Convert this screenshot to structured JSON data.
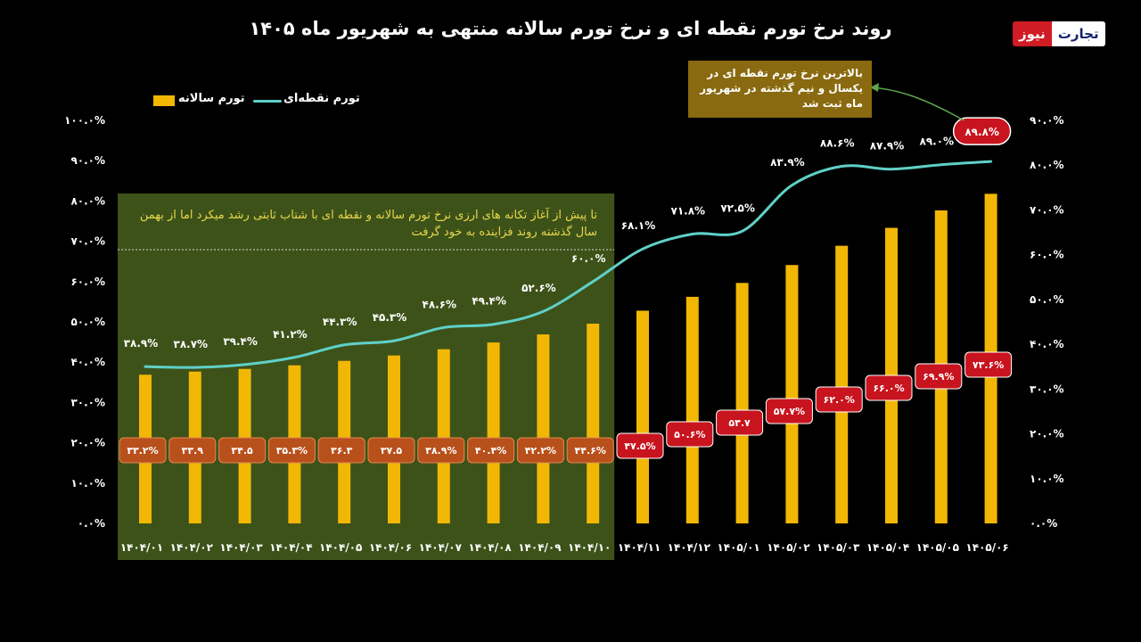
{
  "title": "روند نرخ تورم نقطه ای و نرخ تورم سالانه منتهی به شهریور ماه ۱۴۰۵",
  "logo": {
    "part_red": "نیوز",
    "part_white": "تجارت"
  },
  "legend": {
    "bar_label": "تورم سالانه",
    "line_label": "تورم نقطه‌ای"
  },
  "note": "تا پیش از آغاز تکانه های ارزی نرخ تورم سالانه و نقطه ای با شتاب ثابتی رشد میکرد اما از بهمن سال گذشته روند فزاینده به خود گرفت",
  "callout": "بالاترین نرخ تورم نقطه ای در یکسال و نیم گذشته در شهریور ماه ثبت شد",
  "colors": {
    "background": "#000000",
    "bar": "#f2b705",
    "line": "#5fd0c8",
    "highlight_box": "#3d5219",
    "bar_label_box_early": "#b8501c",
    "bar_label_box_late": "#c8141e",
    "callout_box": "#8a6a10",
    "note_text": "#e8d84a"
  },
  "chart_data": {
    "type": "bar",
    "categories": [
      "۱۴۰۴/۰۱",
      "۱۴۰۴/۰۲",
      "۱۴۰۴/۰۳",
      "۱۴۰۴/۰۴",
      "۱۴۰۴/۰۵",
      "۱۴۰۴/۰۶",
      "۱۴۰۴/۰۷",
      "۱۴۰۴/۰۸",
      "۱۴۰۴/۰۹",
      "۱۴۰۴/۱۰",
      "۱۴۰۴/۱۱",
      "۱۴۰۴/۱۲",
      "۱۴۰۵/۰۱",
      "۱۴۰۵/۰۲",
      "۱۴۰۵/۰۳",
      "۱۴۰۵/۰۴",
      "۱۴۰۵/۰۵",
      "۱۴۰۵/۰۶"
    ],
    "series": [
      {
        "name": "تورم سالانه",
        "type": "bar",
        "axis": "right",
        "values": [
          33.2,
          33.9,
          34.5,
          35.3,
          36.3,
          37.5,
          38.9,
          40.4,
          42.2,
          44.6,
          47.5,
          50.6,
          53.7,
          57.7,
          62.0,
          66.0,
          69.9,
          73.6
        ],
        "labels": [
          "۳۳.۲%",
          "۳۳.۹",
          "۳۴.۵",
          "۳۵.۳%",
          "۳۶.۳",
          "۳۷.۵",
          "۳۸.۹%",
          "۴۰.۴%",
          "۴۲.۲%",
          "۴۴.۶%",
          "۴۷.۵%",
          "۵۰.۶%",
          "۵۳.۷",
          "۵۷.۷%",
          "۶۲.۰%",
          "۶۶.۰%",
          "۶۹.۹%",
          "۷۳.۶%"
        ]
      },
      {
        "name": "تورم نقطه‌ای",
        "type": "line",
        "axis": "left",
        "values": [
          38.9,
          38.7,
          39.4,
          41.2,
          44.3,
          45.3,
          48.6,
          49.4,
          52.6,
          60.0,
          68.1,
          71.8,
          72.5,
          83.9,
          88.6,
          87.9,
          89.0,
          89.8
        ],
        "labels": [
          "۳۸.۹%",
          "۳۸.۷%",
          "۳۹.۴%",
          "۴۱.۲%",
          "۴۴.۳%",
          "۴۵.۳%",
          "۴۸.۶%",
          "۴۹.۴%",
          "۵۲.۶%",
          "۶۰.۰%",
          "۶۸.۱%",
          "۷۱.۸%",
          "۷۲.۵%",
          "۸۳.۹%",
          "۸۸.۶%",
          "۸۷.۹%",
          "۸۹.۰%",
          "۸۹.۸%"
        ]
      }
    ],
    "left_axis": {
      "ylim": [
        0,
        100
      ],
      "ticks": [
        0,
        10,
        20,
        30,
        40,
        50,
        60,
        70,
        80,
        90,
        100
      ],
      "tick_labels": [
        "۰.۰%",
        "۱۰.۰%",
        "۲۰.۰%",
        "۳۰.۰%",
        "۴۰.۰%",
        "۵۰.۰%",
        "۶۰.۰%",
        "۷۰.۰%",
        "۸۰.۰%",
        "۹۰.۰%",
        "۱۰۰.۰%"
      ]
    },
    "right_axis": {
      "ylim": [
        0,
        90
      ],
      "ticks": [
        0,
        10,
        20,
        30,
        40,
        50,
        60,
        70,
        80,
        90
      ],
      "tick_labels": [
        "۰.۰%",
        "۱۰.۰%",
        "۲۰.۰%",
        "۳۰.۰%",
        "۴۰.۰%",
        "۵۰.۰%",
        "۶۰.۰%",
        "۷۰.۰%",
        "۸۰.۰%",
        "۹۰.۰%"
      ]
    },
    "grid": false,
    "legend_position": "top-left",
    "highlight_region": {
      "from_category": "۱۴۰۴/۰۱",
      "to_category": "۱۴۰۴/۱۰"
    }
  }
}
